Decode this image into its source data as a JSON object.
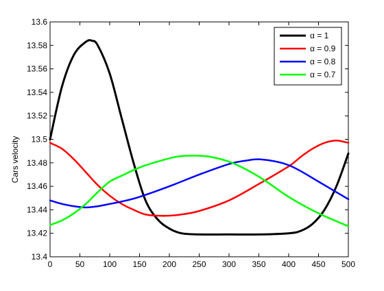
{
  "chart_data": {
    "type": "line",
    "xlabel": "",
    "ylabel": "Cars velocity",
    "xlim": [
      0,
      500
    ],
    "ylim": [
      13.4,
      13.6
    ],
    "xticks": [
      "0",
      "50",
      "100",
      "150",
      "200",
      "250",
      "300",
      "350",
      "400",
      "450",
      "500"
    ],
    "yticks": [
      "13.4",
      "13.42",
      "13.44",
      "13.46",
      "13.48",
      "13.5",
      "13.52",
      "13.54",
      "13.56",
      "13.58",
      "13.6"
    ],
    "grid": false,
    "legend_position": "top-right",
    "series": [
      {
        "name": "α = 1",
        "color": "#000000",
        "x": [
          0,
          20,
          40,
          60,
          70,
          80,
          100,
          120,
          140,
          160,
          180,
          200,
          220,
          250,
          300,
          350,
          400,
          420,
          440,
          460,
          480,
          500
        ],
        "y": [
          13.5,
          13.545,
          13.572,
          13.583,
          13.584,
          13.58,
          13.556,
          13.518,
          13.48,
          13.448,
          13.432,
          13.424,
          13.42,
          13.419,
          13.419,
          13.419,
          13.42,
          13.422,
          13.428,
          13.44,
          13.46,
          13.488
        ]
      },
      {
        "name": "α = 0.9",
        "color": "#ff0000",
        "x": [
          0,
          20,
          40,
          60,
          80,
          100,
          120,
          140,
          160,
          180,
          200,
          220,
          250,
          300,
          350,
          400,
          420,
          440,
          460,
          480,
          500
        ],
        "y": [
          13.497,
          13.492,
          13.483,
          13.472,
          13.461,
          13.452,
          13.445,
          13.44,
          13.436,
          13.435,
          13.435,
          13.436,
          13.439,
          13.448,
          13.462,
          13.477,
          13.485,
          13.492,
          13.497,
          13.499,
          13.497
        ]
      },
      {
        "name": "α = 0.8",
        "color": "#0000ff",
        "x": [
          0,
          20,
          40,
          60,
          80,
          100,
          120,
          150,
          200,
          250,
          300,
          330,
          350,
          380,
          400,
          420,
          450,
          480,
          500
        ],
        "y": [
          13.448,
          13.445,
          13.443,
          13.442,
          13.443,
          13.445,
          13.447,
          13.451,
          13.46,
          13.47,
          13.479,
          13.482,
          13.483,
          13.481,
          13.478,
          13.473,
          13.464,
          13.455,
          13.449
        ]
      },
      {
        "name": "α = 0.7",
        "color": "#00ff00",
        "x": [
          0,
          20,
          40,
          60,
          80,
          100,
          120,
          150,
          180,
          210,
          230,
          250,
          270,
          300,
          330,
          360,
          400,
          450,
          500
        ],
        "y": [
          13.427,
          13.431,
          13.437,
          13.445,
          13.455,
          13.464,
          13.469,
          13.476,
          13.481,
          13.485,
          13.486,
          13.486,
          13.485,
          13.481,
          13.474,
          13.465,
          13.451,
          13.437,
          13.426
        ]
      }
    ]
  }
}
